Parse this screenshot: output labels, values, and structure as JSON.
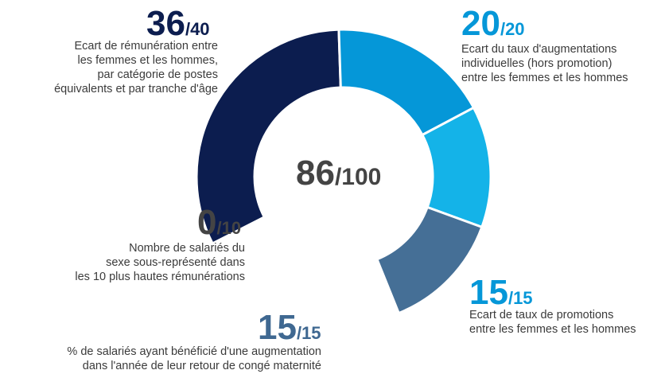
{
  "chart_data": {
    "type": "pie",
    "total": {
      "score": "86",
      "max": "/100"
    },
    "segments": [
      {
        "score": "36",
        "max": "/40",
        "value": 36,
        "out_of": 40,
        "color": "#0c1d4f",
        "score_color": "#0c1d4f",
        "label_lines": [
          "Ecart de rémunération entre",
          "les femmes et les hommes,",
          "par catégorie de postes",
          "équivalents et par tranche d'âge"
        ]
      },
      {
        "score": "20",
        "max": "/20",
        "value": 20,
        "out_of": 20,
        "color": "#0597d8",
        "score_color": "#0597d8",
        "label_lines": [
          "Ecart du taux d'augmentations",
          "individuelles (hors promotion)",
          "entre les femmes et les hommes"
        ]
      },
      {
        "score": "15",
        "max": "/15",
        "value": 15,
        "out_of": 15,
        "color": "#14b3e8",
        "score_color": "#0597d8",
        "label_lines": [
          "Ecart de taux de promotions",
          "entre les femmes et les hommes"
        ]
      },
      {
        "score": "15",
        "max": "/15",
        "value": 15,
        "out_of": 15,
        "color": "#456f96",
        "score_color": "#3f6891",
        "label_lines": [
          "% de salariés ayant bénéficié d'une augmentation",
          "dans l'année de leur retour de congé maternité"
        ]
      },
      {
        "score": "0",
        "max": "/10",
        "value": 0,
        "out_of": 10,
        "color": "#444444",
        "score_color": "#444444",
        "label_lines": [
          "Nombre de salariés du",
          "sexe sous-représenté dans",
          "les 10 plus hautes rémunérations"
        ]
      }
    ]
  }
}
